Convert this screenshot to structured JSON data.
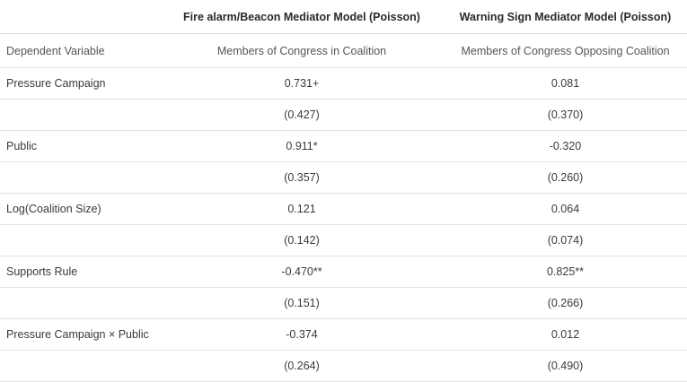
{
  "header": {
    "model1": "Fire alarm/Beacon Mediator Model (Poisson)",
    "model2": "Warning Sign Mediator Model (Poisson)",
    "dv_label": "Dependent Variable",
    "dv1": "Members of Congress in Coalition",
    "dv2": "Members of Congress Opposing Coalition"
  },
  "rows": [
    {
      "label": "Pressure Campaign",
      "v1": "0.731+",
      "v2": "0.081"
    },
    {
      "label": "",
      "v1": "(0.427)",
      "v2": "(0.370)"
    },
    {
      "label": "Public",
      "v1": "0.911*",
      "v2": "-0.320"
    },
    {
      "label": "",
      "v1": "(0.357)",
      "v2": "(0.260)"
    },
    {
      "label": "Log(Coalition Size)",
      "v1": "0.121",
      "v2": "0.064"
    },
    {
      "label": "",
      "v1": "(0.142)",
      "v2": "(0.074)"
    },
    {
      "label": "Supports Rule",
      "v1": "-0.470**",
      "v2": "0.825**"
    },
    {
      "label": "",
      "v1": "(0.151)",
      "v2": "(0.266)"
    },
    {
      "label": "Pressure Campaign × Public",
      "v1": "-0.374",
      "v2": "0.012"
    },
    {
      "label": "",
      "v1": "(0.264)",
      "v2": "(0.490)"
    }
  ]
}
